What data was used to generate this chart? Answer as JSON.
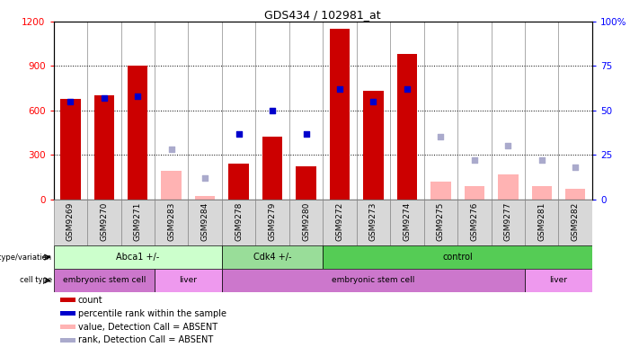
{
  "title": "GDS434 / 102981_at",
  "samples": [
    "GSM9269",
    "GSM9270",
    "GSM9271",
    "GSM9283",
    "GSM9284",
    "GSM9278",
    "GSM9279",
    "GSM9280",
    "GSM9272",
    "GSM9273",
    "GSM9274",
    "GSM9275",
    "GSM9276",
    "GSM9277",
    "GSM9281",
    "GSM9282"
  ],
  "count": [
    680,
    700,
    900,
    null,
    null,
    240,
    420,
    220,
    1150,
    730,
    980,
    null,
    null,
    null,
    null,
    null
  ],
  "rank": [
    55,
    57,
    58,
    null,
    null,
    37,
    50,
    37,
    62,
    55,
    62,
    null,
    null,
    null,
    null,
    null
  ],
  "count_absent": [
    null,
    null,
    null,
    190,
    20,
    null,
    null,
    null,
    null,
    null,
    null,
    120,
    90,
    170,
    90,
    70
  ],
  "rank_absent": [
    null,
    null,
    null,
    28,
    12,
    null,
    null,
    null,
    null,
    null,
    null,
    35,
    22,
    30,
    22,
    18
  ],
  "ylim_left": [
    0,
    1200
  ],
  "ylim_right": [
    0,
    100
  ],
  "yticks_left": [
    0,
    300,
    600,
    900,
    1200
  ],
  "yticks_right": [
    0,
    25,
    50,
    75,
    100
  ],
  "bar_color_count": "#cc0000",
  "bar_color_absent": "#ffb3b3",
  "marker_color_rank": "#0000cc",
  "marker_color_rank_absent": "#aaaacc",
  "genotype_groups": [
    {
      "label": "Abca1 +/-",
      "start": 0,
      "end": 5,
      "color": "#ccffcc"
    },
    {
      "label": "Cdk4 +/-",
      "start": 5,
      "end": 8,
      "color": "#99dd99"
    },
    {
      "label": "control",
      "start": 8,
      "end": 16,
      "color": "#55cc55"
    }
  ],
  "celltype_groups": [
    {
      "label": "embryonic stem cell",
      "start": 0,
      "end": 3,
      "color": "#cc77cc"
    },
    {
      "label": "liver",
      "start": 3,
      "end": 5,
      "color": "#ee99ee"
    },
    {
      "label": "embryonic stem cell",
      "start": 5,
      "end": 14,
      "color": "#cc77cc"
    },
    {
      "label": "liver",
      "start": 14,
      "end": 16,
      "color": "#ee99ee"
    }
  ],
  "legend_items": [
    {
      "label": "count",
      "color": "#cc0000"
    },
    {
      "label": "percentile rank within the sample",
      "color": "#0000cc"
    },
    {
      "label": "value, Detection Call = ABSENT",
      "color": "#ffb3b3"
    },
    {
      "label": "rank, Detection Call = ABSENT",
      "color": "#aaaacc"
    }
  ]
}
